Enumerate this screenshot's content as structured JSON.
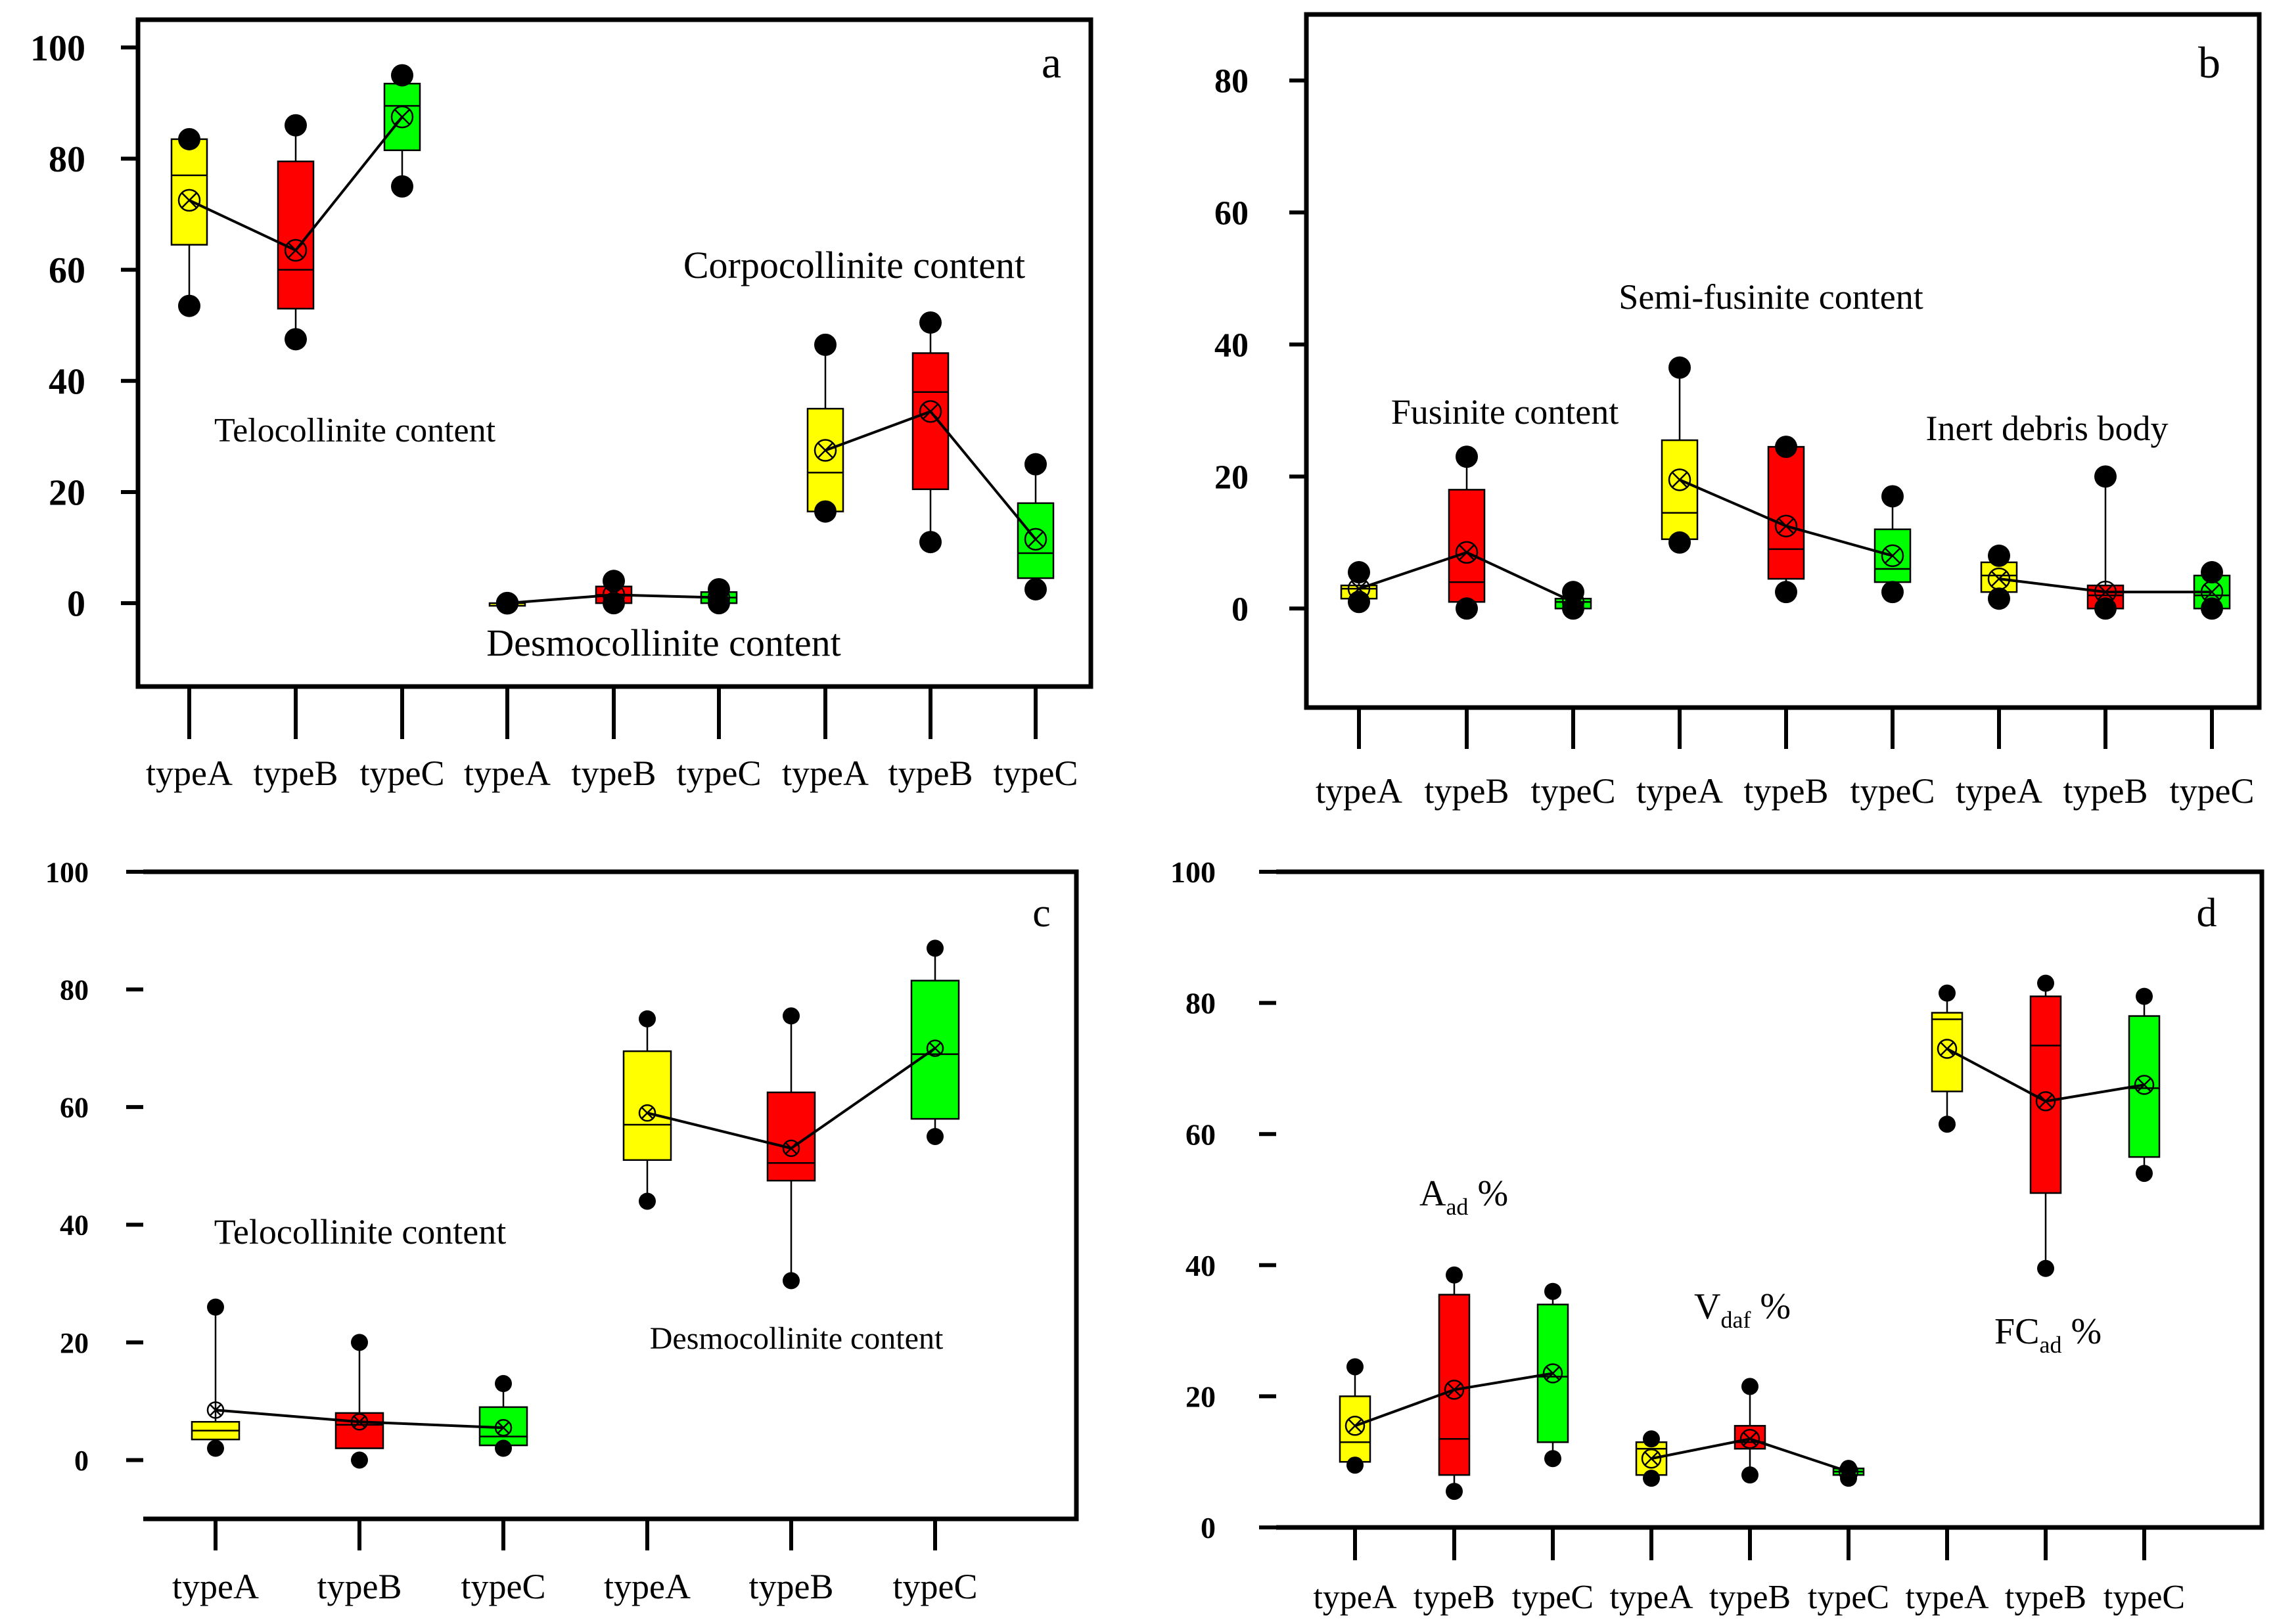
{
  "colors": {
    "typeA": "#ffff00",
    "typeB": "#ff0000",
    "typeC": "#00ff00",
    "axis": "#000000"
  },
  "chart_data": [
    {
      "type": "box",
      "panel_label": "a",
      "ylim": [
        -15,
        105
      ],
      "yticks": [
        0,
        20,
        40,
        60,
        80,
        100
      ],
      "categories": [
        "typeA",
        "typeB",
        "typeC",
        "typeA",
        "typeB",
        "typeC",
        "typeA",
        "typeB",
        "typeC"
      ],
      "annotations": [
        "Telocollinite content",
        "Desmocollinite content",
        "Corpocollinite content"
      ],
      "groups": [
        {
          "name": "Telocollinite content",
          "boxes": [
            {
              "cat": 0,
              "color": "typeA",
              "min": 53.5,
              "q1": 64.5,
              "median": 77,
              "q3": 83.5,
              "max": 83.5,
              "mean": 72.5,
              "whisker_lo": 53.5,
              "whisker_hi": 83.5
            },
            {
              "cat": 1,
              "color": "typeB",
              "min": 47.5,
              "q1": 53,
              "median": 60,
              "q3": 79.5,
              "max": 86,
              "mean": 63.5,
              "whisker_lo": 47.5,
              "whisker_hi": 86
            },
            {
              "cat": 2,
              "color": "typeC",
              "min": 75,
              "q1": 81.5,
              "median": 89.5,
              "q3": 93.5,
              "max": 95,
              "mean": 87.5,
              "whisker_lo": 75,
              "whisker_hi": 95
            }
          ]
        },
        {
          "name": "Desmocollinite content",
          "boxes": [
            {
              "cat": 3,
              "color": "typeA",
              "min": 0,
              "q1": 0,
              "median": 0,
              "q3": 0,
              "max": 0,
              "mean": 0,
              "whisker_lo": 0,
              "whisker_hi": 0
            },
            {
              "cat": 4,
              "color": "typeB",
              "min": 0,
              "q1": 0,
              "median": 1.5,
              "q3": 3,
              "max": 4,
              "mean": 1.5,
              "whisker_lo": 0,
              "whisker_hi": 4
            },
            {
              "cat": 5,
              "color": "typeC",
              "min": 0,
              "q1": 0,
              "median": 1,
              "q3": 2,
              "max": 2.5,
              "mean": 1,
              "whisker_lo": 0,
              "whisker_hi": 2.5
            }
          ]
        },
        {
          "name": "Corpocollinite content",
          "boxes": [
            {
              "cat": 6,
              "color": "typeA",
              "min": 16.5,
              "q1": 16.5,
              "median": 23.5,
              "q3": 35,
              "max": 46.5,
              "mean": 27.5,
              "whisker_lo": 16.5,
              "whisker_hi": 46.5
            },
            {
              "cat": 7,
              "color": "typeB",
              "min": 11,
              "q1": 20.5,
              "median": 38,
              "q3": 45,
              "max": 50.5,
              "mean": 34.5,
              "whisker_lo": 11,
              "whisker_hi": 50.5
            },
            {
              "cat": 8,
              "color": "typeC",
              "min": 2.5,
              "q1": 4.5,
              "median": 9,
              "q3": 18,
              "max": 25,
              "mean": 11.5,
              "whisker_lo": 2.5,
              "whisker_hi": 25
            }
          ]
        }
      ]
    },
    {
      "type": "box",
      "panel_label": "b",
      "ylim": [
        -15,
        90
      ],
      "yticks": [
        0,
        20,
        40,
        60,
        80
      ],
      "categories": [
        "typeA",
        "typeB",
        "typeC",
        "typeA",
        "typeB",
        "typeC",
        "typeA",
        "typeB",
        "typeC"
      ],
      "annotations": [
        "Fusinite content",
        "Semi-fusinite content",
        "Inert debris body"
      ],
      "groups": [
        {
          "name": "Fusinite content",
          "boxes": [
            {
              "cat": 0,
              "color": "typeA",
              "min": 1,
              "q1": 1.5,
              "median": 3,
              "q3": 3.5,
              "max": 5.5,
              "mean": 3,
              "whisker_lo": 1,
              "whisker_hi": 5.5
            },
            {
              "cat": 1,
              "color": "typeB",
              "min": 0,
              "q1": 1,
              "median": 4,
              "q3": 18,
              "max": 23,
              "mean": 8.5,
              "whisker_lo": 0,
              "whisker_hi": 23
            },
            {
              "cat": 2,
              "color": "typeC",
              "min": 0,
              "q1": 0,
              "median": 1,
              "q3": 1.5,
              "max": 2.5,
              "mean": 1,
              "whisker_lo": 0,
              "whisker_hi": 2.5
            }
          ]
        },
        {
          "name": "Semi-fusinite content",
          "boxes": [
            {
              "cat": 3,
              "color": "typeA",
              "min": 10,
              "q1": 10.5,
              "median": 14.5,
              "q3": 25.5,
              "max": 36.5,
              "mean": 19.5,
              "whisker_lo": 10,
              "whisker_hi": 36.5
            },
            {
              "cat": 4,
              "color": "typeB",
              "min": 2.5,
              "q1": 4.5,
              "median": 9,
              "q3": 24.5,
              "max": 24.5,
              "mean": 12.5,
              "whisker_lo": 2.5,
              "whisker_hi": 24.5
            },
            {
              "cat": 5,
              "color": "typeC",
              "min": 2.5,
              "q1": 4,
              "median": 6,
              "q3": 12,
              "max": 17,
              "mean": 8,
              "whisker_lo": 2.5,
              "whisker_hi": 17
            }
          ]
        },
        {
          "name": "Inert debris body",
          "boxes": [
            {
              "cat": 6,
              "color": "typeA",
              "min": 1.5,
              "q1": 2.5,
              "median": 5,
              "q3": 7,
              "max": 8,
              "mean": 4.5,
              "whisker_lo": 1.5,
              "whisker_hi": 8
            },
            {
              "cat": 7,
              "color": "typeB",
              "min": 0,
              "q1": 0,
              "median": 2,
              "q3": 3.5,
              "max": 20,
              "mean": 2.5,
              "whisker_lo": 0,
              "whisker_hi": 20
            },
            {
              "cat": 8,
              "color": "typeC",
              "min": 0,
              "q1": 0,
              "median": 2,
              "q3": 5,
              "max": 5.5,
              "mean": 2.5,
              "whisker_lo": 0,
              "whisker_hi": 5.5
            }
          ]
        }
      ]
    },
    {
      "type": "box",
      "panel_label": "c",
      "ylim": [
        -10,
        100
      ],
      "yticks": [
        0,
        20,
        40,
        60,
        80,
        100
      ],
      "categories": [
        "typeA",
        "typeB",
        "typeC",
        "typeA",
        "typeB",
        "typeC"
      ],
      "annotations": [
        "Telocollinite content",
        "Desmocollinite content"
      ],
      "groups": [
        {
          "name": "Telocollinite content",
          "boxes": [
            {
              "cat": 0,
              "color": "typeA",
              "min": 2,
              "q1": 3.5,
              "median": 5,
              "q3": 6.5,
              "max": 26,
              "mean": 8.5,
              "whisker_lo": 3.5,
              "whisker_hi": 26
            },
            {
              "cat": 1,
              "color": "typeB",
              "min": 0,
              "q1": 2,
              "median": 6,
              "q3": 8,
              "max": 20,
              "mean": 6.5,
              "whisker_lo": 2,
              "whisker_hi": 20
            },
            {
              "cat": 2,
              "color": "typeC",
              "min": 2,
              "q1": 2.5,
              "median": 4,
              "q3": 9,
              "max": 13,
              "mean": 5.5,
              "whisker_lo": 2.5,
              "whisker_hi": 13
            }
          ]
        },
        {
          "name": "Desmocollinite content",
          "boxes": [
            {
              "cat": 3,
              "color": "typeA",
              "min": 44,
              "q1": 51,
              "median": 57,
              "q3": 69.5,
              "max": 75,
              "mean": 59,
              "whisker_lo": 44,
              "whisker_hi": 75
            },
            {
              "cat": 4,
              "color": "typeB",
              "min": 30.5,
              "q1": 47.5,
              "median": 50.5,
              "q3": 62.5,
              "max": 75.5,
              "mean": 53,
              "whisker_lo": 30.5,
              "whisker_hi": 75.5
            },
            {
              "cat": 5,
              "color": "typeC",
              "min": 55,
              "q1": 58,
              "median": 69,
              "q3": 81.5,
              "max": 87,
              "mean": 70,
              "whisker_lo": 55,
              "whisker_hi": 87
            }
          ]
        }
      ]
    },
    {
      "type": "box",
      "panel_label": "d",
      "ylim": [
        0,
        100
      ],
      "yticks": [
        0,
        20,
        40,
        60,
        80,
        100
      ],
      "categories": [
        "typeA",
        "typeB",
        "typeC",
        "typeA",
        "typeB",
        "typeC",
        "typeA",
        "typeB",
        "typeC"
      ],
      "annotations": [
        {
          "main": "A",
          "sub": "ad",
          "suffix": " %"
        },
        {
          "main": "V",
          "sub": "daf",
          "suffix": " %"
        },
        {
          "main": "FC",
          "sub": "ad",
          "suffix": " %"
        }
      ],
      "groups": [
        {
          "name": "Aad %",
          "boxes": [
            {
              "cat": 0,
              "color": "typeA",
              "min": 9.5,
              "q1": 10,
              "median": 13,
              "q3": 20,
              "max": 24.5,
              "mean": 15.5,
              "whisker_lo": 9.5,
              "whisker_hi": 24.5
            },
            {
              "cat": 1,
              "color": "typeB",
              "min": 5.5,
              "q1": 8,
              "median": 13.5,
              "q3": 35.5,
              "max": 38.5,
              "mean": 21,
              "whisker_lo": 5.5,
              "whisker_hi": 38.5
            },
            {
              "cat": 2,
              "color": "typeC",
              "min": 10.5,
              "q1": 13,
              "median": 23,
              "q3": 34,
              "max": 36,
              "mean": 23.5,
              "whisker_lo": 10.5,
              "whisker_hi": 36
            }
          ]
        },
        {
          "name": "Vdaf %",
          "boxes": [
            {
              "cat": 3,
              "color": "typeA",
              "min": 7.5,
              "q1": 8,
              "median": 12,
              "q3": 13,
              "max": 13.5,
              "mean": 10.5,
              "whisker_lo": 7.5,
              "whisker_hi": 13.5
            },
            {
              "cat": 4,
              "color": "typeB",
              "min": 8,
              "q1": 12,
              "median": 13,
              "q3": 15.5,
              "max": 21.5,
              "mean": 13.5,
              "whisker_lo": 8,
              "whisker_hi": 21.5
            },
            {
              "cat": 5,
              "color": "typeC",
              "min": 7.5,
              "q1": 8,
              "median": 8.5,
              "q3": 9,
              "max": 9,
              "mean": 8.5,
              "whisker_lo": 7.5,
              "whisker_hi": 9
            }
          ]
        },
        {
          "name": "FCad %",
          "boxes": [
            {
              "cat": 6,
              "color": "typeA",
              "min": 61.5,
              "q1": 66.5,
              "median": 77.5,
              "q3": 78.5,
              "max": 81.5,
              "mean": 73,
              "whisker_lo": 61.5,
              "whisker_hi": 81.5
            },
            {
              "cat": 7,
              "color": "typeB",
              "min": 39.5,
              "q1": 51,
              "median": 73.5,
              "q3": 81,
              "max": 83,
              "mean": 65,
              "whisker_lo": 39.5,
              "whisker_hi": 83
            },
            {
              "cat": 8,
              "color": "typeC",
              "min": 54,
              "q1": 56.5,
              "median": 67,
              "q3": 78,
              "max": 81,
              "mean": 67.5,
              "whisker_lo": 54,
              "whisker_hi": 81
            }
          ]
        }
      ]
    }
  ]
}
